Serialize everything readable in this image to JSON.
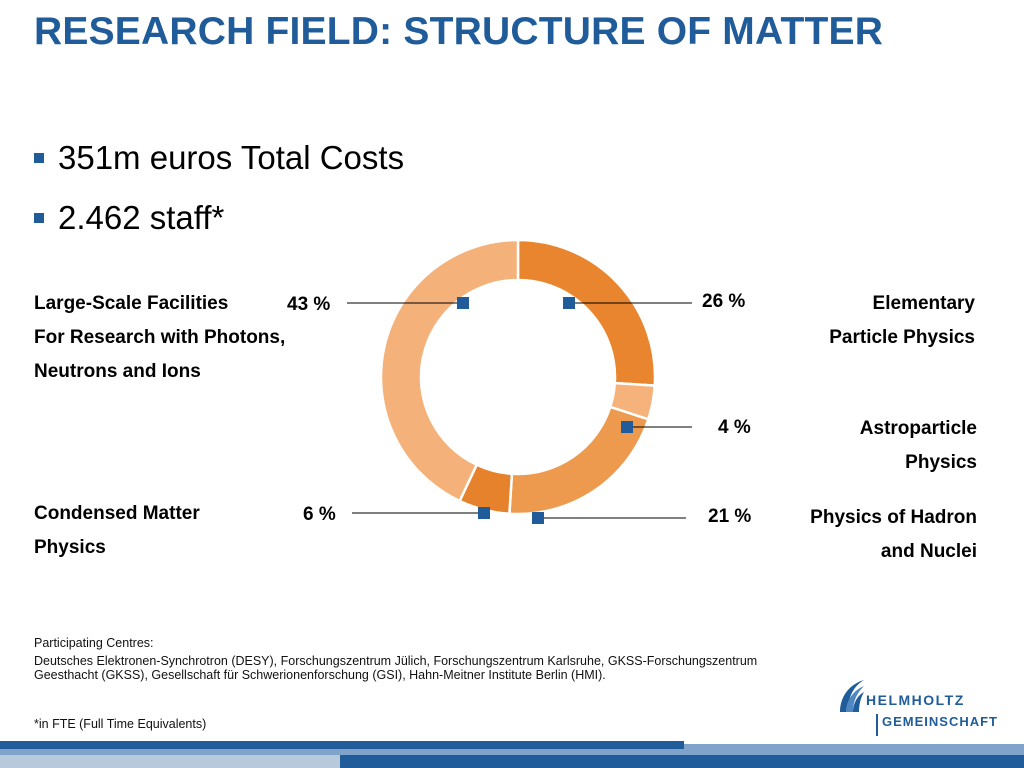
{
  "title": "RESEARCH FIELD: STRUCTURE OF MATTER",
  "bullets": [
    "351m euros Total Costs",
    "2.462 staff*"
  ],
  "colors": {
    "accent": "#1f5c99",
    "marker": "#1f5c99"
  },
  "labels": {
    "large_scale_1": "Large-Scale Facilities",
    "large_scale_2": "For Research with Photons,",
    "large_scale_3": "Neutrons and Ions",
    "elementary_1": "Elementary",
    "elementary_2": "Particle Physics",
    "astro_1": "Astroparticle",
    "astro_2": "Physics",
    "condensed_1": "Condensed Matter",
    "condensed_2": "Physics",
    "hadron_1": "Physics of Hadron",
    "hadron_2": "and Nuclei"
  },
  "chart_data": {
    "type": "pie",
    "style": "donut",
    "slices": [
      {
        "label": "Elementary Particle Physics",
        "value": 26,
        "display": "26 %",
        "color": "#e8852e"
      },
      {
        "label": "Astroparticle Physics",
        "value": 4,
        "display": "4 %",
        "color": "#f5b27a"
      },
      {
        "label": "Physics of Hadron and Nuclei",
        "value": 21,
        "display": "21 %",
        "color": "#ee9a4e"
      },
      {
        "label": "Condensed Matter Physics",
        "value": 6,
        "display": "6 %",
        "color": "#e6812c"
      },
      {
        "label": "Large-Scale Facilities For Research with Photons, Neutrons and Ions",
        "value": 43,
        "display": "43 %",
        "color": "#f4b179"
      }
    ]
  },
  "footnotes": {
    "centres_heading": "Participating Centres:",
    "centres_text": "Deutsches Elektronen-Synchrotron (DESY), Forschungszentrum Jülich, Forschungszentrum Karlsruhe, GKSS-Forschungszentrum Geesthacht (GKSS), Gesellschaft für Schwerionenforschung (GSI), Hahn-Meitner Institute Berlin (HMI).",
    "fte_note": "*in FTE (Full Time Equivalents)"
  },
  "logo": {
    "line1": "HELMHOLTZ",
    "line2": "GEMEINSCHAFT"
  }
}
